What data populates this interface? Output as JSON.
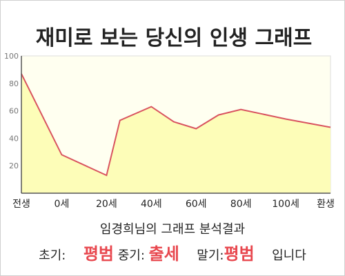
{
  "chart_data": {
    "type": "area",
    "title": "재미로 보는 당신의 인생 그래프",
    "categories": [
      "전생",
      "0세",
      "20세",
      "40세",
      "60세",
      "80세",
      "100세",
      "환생"
    ],
    "yticks": [
      "100",
      "80",
      "60",
      "40",
      "20"
    ],
    "ylim": [
      0,
      100
    ],
    "grid": false,
    "series": [
      {
        "x": [
          -18,
          0,
          20,
          26,
          40,
          50,
          60,
          70,
          80,
          100,
          120
        ],
        "y": [
          87,
          28,
          13,
          53,
          63,
          52,
          47,
          57,
          61,
          54,
          48
        ]
      }
    ],
    "colors": {
      "line": "#d9535f",
      "fill": "#fdfdb8",
      "plot_bg": "#fffff0"
    }
  },
  "summary": {
    "name_line": "임경희님의 그래프 분석결과",
    "early_label": "초기:",
    "early_value": "평범",
    "middle_label": "중기:",
    "middle_value": "출세",
    "late_label": "말기:",
    "late_value": "평범",
    "ending": "입니다"
  }
}
